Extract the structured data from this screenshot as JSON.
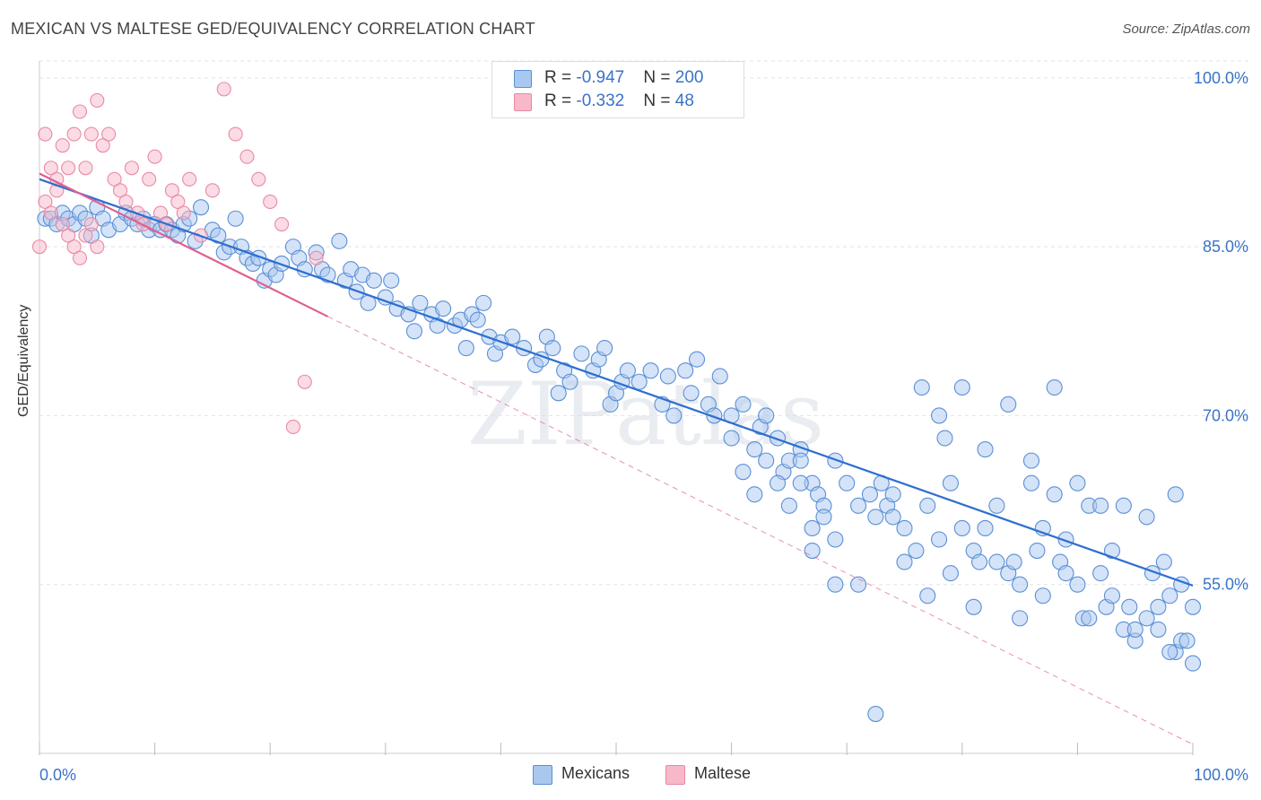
{
  "title": "MEXICAN VS MALTESE GED/EQUIVALENCY CORRELATION CHART",
  "source": "Source: ZipAtlas.com",
  "watermark": "ZIPatlas",
  "legend_top": {
    "rows": [
      {
        "r_label": "R = ",
        "r_value": "-0.947",
        "n_label": "N = ",
        "n_value": "200"
      },
      {
        "r_label": "R = ",
        "r_value": "-0.332",
        "n_label": "N = ",
        "n_value": "48"
      }
    ]
  },
  "legend_bottom": [
    "Mexicans",
    "Maltese"
  ],
  "colors": {
    "mexicans_fill": "#a9c8f0",
    "mexicans_stroke": "#5b8fd6",
    "mexicans_line": "#2d6fd0",
    "maltese_fill": "#f7b8ca",
    "maltese_stroke": "#e88aa6",
    "maltese_line": "#e06090",
    "axis_text": "#3a73c8",
    "grid": "#e3e3e3"
  },
  "chart_data": {
    "type": "scatter",
    "title": "MEXICAN VS MALTESE GED/EQUIVALENCY CORRELATION CHART",
    "xlabel": "",
    "ylabel": "GED/Equivalency",
    "xlim": [
      0,
      100
    ],
    "ylim": [
      40,
      101.5
    ],
    "x_tick_labels": [
      "0.0%",
      "100.0%"
    ],
    "y_ticks": [
      55,
      70,
      85,
      100
    ],
    "y_tick_labels": [
      "55.0%",
      "70.0%",
      "85.0%",
      "100.0%"
    ],
    "grid": true,
    "legend_placement": "top-center",
    "series": [
      {
        "name": "Mexicans",
        "r": -0.947,
        "n": 200,
        "trend": {
          "x": [
            0,
            100
          ],
          "y": [
            91,
            54.9
          ]
        },
        "points": [
          [
            0.5,
            87.5
          ],
          [
            1,
            87.5
          ],
          [
            1.5,
            87
          ],
          [
            2,
            88
          ],
          [
            2.5,
            87.5
          ],
          [
            3,
            87
          ],
          [
            3.5,
            88
          ],
          [
            4,
            87.5
          ],
          [
            4.5,
            86
          ],
          [
            5,
            88.5
          ],
          [
            5.5,
            87.5
          ],
          [
            6,
            86.5
          ],
          [
            7,
            87
          ],
          [
            7.5,
            88
          ],
          [
            8,
            87.5
          ],
          [
            8.5,
            87
          ],
          [
            9,
            87.5
          ],
          [
            9.5,
            86.5
          ],
          [
            10,
            87
          ],
          [
            10.5,
            86.5
          ],
          [
            11,
            87
          ],
          [
            11.5,
            86.5
          ],
          [
            12,
            86
          ],
          [
            12.5,
            87
          ],
          [
            13,
            87.5
          ],
          [
            13.5,
            85.5
          ],
          [
            14,
            88.5
          ],
          [
            15,
            86.5
          ],
          [
            15.5,
            86
          ],
          [
            16,
            84.5
          ],
          [
            16.5,
            85
          ],
          [
            17,
            87.5
          ],
          [
            17.5,
            85
          ],
          [
            18,
            84
          ],
          [
            18.5,
            83.5
          ],
          [
            19,
            84
          ],
          [
            19.5,
            82
          ],
          [
            20,
            83
          ],
          [
            20.5,
            82.5
          ],
          [
            21,
            83.5
          ],
          [
            22,
            85
          ],
          [
            22.5,
            84
          ],
          [
            23,
            83
          ],
          [
            24,
            84.5
          ],
          [
            24.5,
            83
          ],
          [
            25,
            82.5
          ],
          [
            26,
            85.5
          ],
          [
            26.5,
            82
          ],
          [
            27,
            83
          ],
          [
            27.5,
            81
          ],
          [
            28,
            82.5
          ],
          [
            28.5,
            80
          ],
          [
            29,
            82
          ],
          [
            30,
            80.5
          ],
          [
            30.5,
            82
          ],
          [
            31,
            79.5
          ],
          [
            32,
            79
          ],
          [
            32.5,
            77.5
          ],
          [
            33,
            80
          ],
          [
            34,
            79
          ],
          [
            34.5,
            78
          ],
          [
            35,
            79.5
          ],
          [
            36,
            78
          ],
          [
            36.5,
            78.5
          ],
          [
            37,
            76
          ],
          [
            37.5,
            79
          ],
          [
            38,
            78.5
          ],
          [
            38.5,
            80
          ],
          [
            39,
            77
          ],
          [
            39.5,
            75.5
          ],
          [
            40,
            76.5
          ],
          [
            41,
            77
          ],
          [
            42,
            76
          ],
          [
            43,
            74.5
          ],
          [
            43.5,
            75
          ],
          [
            44,
            77
          ],
          [
            44.5,
            76
          ],
          [
            45,
            72
          ],
          [
            45.5,
            74
          ],
          [
            46,
            73
          ],
          [
            47,
            75.5
          ],
          [
            48,
            74
          ],
          [
            48.5,
            75
          ],
          [
            49,
            76
          ],
          [
            49.5,
            71
          ],
          [
            50,
            72
          ],
          [
            50.5,
            73
          ],
          [
            51,
            74
          ],
          [
            52,
            73
          ],
          [
            53,
            74
          ],
          [
            54,
            71
          ],
          [
            54.5,
            73.5
          ],
          [
            55,
            70
          ],
          [
            56,
            74
          ],
          [
            56.5,
            72
          ],
          [
            57,
            75
          ],
          [
            58,
            71
          ],
          [
            58.5,
            70
          ],
          [
            59,
            73.5
          ],
          [
            60,
            70
          ],
          [
            61,
            71
          ],
          [
            62,
            67
          ],
          [
            62.5,
            69
          ],
          [
            63,
            70
          ],
          [
            64,
            68
          ],
          [
            64.5,
            65
          ],
          [
            65,
            66
          ],
          [
            66,
            67
          ],
          [
            67,
            64
          ],
          [
            67.5,
            63
          ],
          [
            68,
            62
          ],
          [
            69,
            66
          ],
          [
            70,
            64
          ],
          [
            71,
            62
          ],
          [
            72,
            63
          ],
          [
            72.5,
            61
          ],
          [
            73,
            64
          ],
          [
            73.5,
            62
          ],
          [
            74,
            63
          ],
          [
            75,
            60
          ],
          [
            76,
            58
          ],
          [
            77,
            62
          ],
          [
            78,
            59
          ],
          [
            78.5,
            68
          ],
          [
            79,
            64
          ],
          [
            80,
            60
          ],
          [
            81,
            58
          ],
          [
            81.5,
            57
          ],
          [
            82,
            60
          ],
          [
            83,
            62
          ],
          [
            84,
            56
          ],
          [
            84.5,
            57
          ],
          [
            85,
            55
          ],
          [
            86,
            64
          ],
          [
            86.5,
            58
          ],
          [
            87,
            60
          ],
          [
            88,
            63
          ],
          [
            88.5,
            57
          ],
          [
            89,
            59
          ],
          [
            90,
            55
          ],
          [
            90.5,
            52
          ],
          [
            91,
            62
          ],
          [
            92,
            56
          ],
          [
            92.5,
            53
          ],
          [
            93,
            58
          ],
          [
            94,
            51
          ],
          [
            94.5,
            53
          ],
          [
            95,
            50
          ],
          [
            96,
            52
          ],
          [
            96.5,
            56
          ],
          [
            97,
            51
          ],
          [
            98,
            54
          ],
          [
            98.5,
            49
          ],
          [
            99,
            50
          ],
          [
            100,
            48
          ],
          [
            76.5,
            72.5
          ],
          [
            78,
            70
          ],
          [
            80,
            72.5
          ],
          [
            82,
            67
          ],
          [
            84,
            71
          ],
          [
            86,
            66
          ],
          [
            88,
            72.5
          ],
          [
            90,
            64
          ],
          [
            92,
            62
          ],
          [
            94,
            62
          ],
          [
            96,
            61
          ],
          [
            97.5,
            57
          ],
          [
            98.5,
            63
          ],
          [
            99.5,
            50
          ],
          [
            72.5,
            43.5
          ],
          [
            66,
            66
          ],
          [
            67,
            58
          ],
          [
            69,
            55
          ],
          [
            71,
            55
          ],
          [
            74,
            61
          ],
          [
            75,
            57
          ],
          [
            77,
            54
          ],
          [
            79,
            56
          ],
          [
            81,
            53
          ],
          [
            83,
            57
          ],
          [
            85,
            52
          ],
          [
            87,
            54
          ],
          [
            89,
            56
          ],
          [
            91,
            52
          ],
          [
            93,
            54
          ],
          [
            95,
            51
          ],
          [
            97,
            53
          ],
          [
            98,
            49
          ],
          [
            99,
            55
          ],
          [
            100,
            53
          ],
          [
            60,
            68
          ],
          [
            61,
            65
          ],
          [
            62,
            63
          ],
          [
            63,
            66
          ],
          [
            64,
            64
          ],
          [
            65,
            62
          ],
          [
            66,
            64
          ],
          [
            67,
            60
          ],
          [
            68,
            61
          ],
          [
            69,
            59
          ]
        ]
      },
      {
        "name": "Maltese",
        "r": -0.332,
        "n": 48,
        "trend": {
          "x": [
            0,
            25
          ],
          "y": [
            91.5,
            78.8
          ]
        },
        "trend_extension": {
          "x": [
            25,
            100
          ],
          "y": [
            78.8,
            40.8
          ]
        },
        "points": [
          [
            0,
            85
          ],
          [
            0.5,
            95
          ],
          [
            1,
            92
          ],
          [
            1.5,
            90
          ],
          [
            2,
            94
          ],
          [
            2.5,
            92
          ],
          [
            3,
            95
          ],
          [
            3.5,
            97
          ],
          [
            4,
            92
          ],
          [
            4.5,
            95
          ],
          [
            5,
            98
          ],
          [
            5.5,
            94
          ],
          [
            6,
            95
          ],
          [
            6.5,
            91
          ],
          [
            7,
            90
          ],
          [
            7.5,
            89
          ],
          [
            8,
            92
          ],
          [
            8.5,
            88
          ],
          [
            9,
            87
          ],
          [
            9.5,
            91
          ],
          [
            10,
            93
          ],
          [
            10.5,
            88
          ],
          [
            11,
            87
          ],
          [
            11.5,
            90
          ],
          [
            12,
            89
          ],
          [
            12.5,
            88
          ],
          [
            13,
            91
          ],
          [
            14,
            86
          ],
          [
            15,
            90
          ],
          [
            16,
            99
          ],
          [
            17,
            95
          ],
          [
            18,
            93
          ],
          [
            19,
            91
          ],
          [
            20,
            89
          ],
          [
            21,
            87
          ],
          [
            22,
            69
          ],
          [
            23,
            73
          ],
          [
            24,
            84
          ],
          [
            0.5,
            89
          ],
          [
            1,
            88
          ],
          [
            1.5,
            91
          ],
          [
            2,
            87
          ],
          [
            2.5,
            86
          ],
          [
            3,
            85
          ],
          [
            3.5,
            84
          ],
          [
            4,
            86
          ],
          [
            4.5,
            87
          ],
          [
            5,
            85
          ]
        ]
      }
    ]
  }
}
